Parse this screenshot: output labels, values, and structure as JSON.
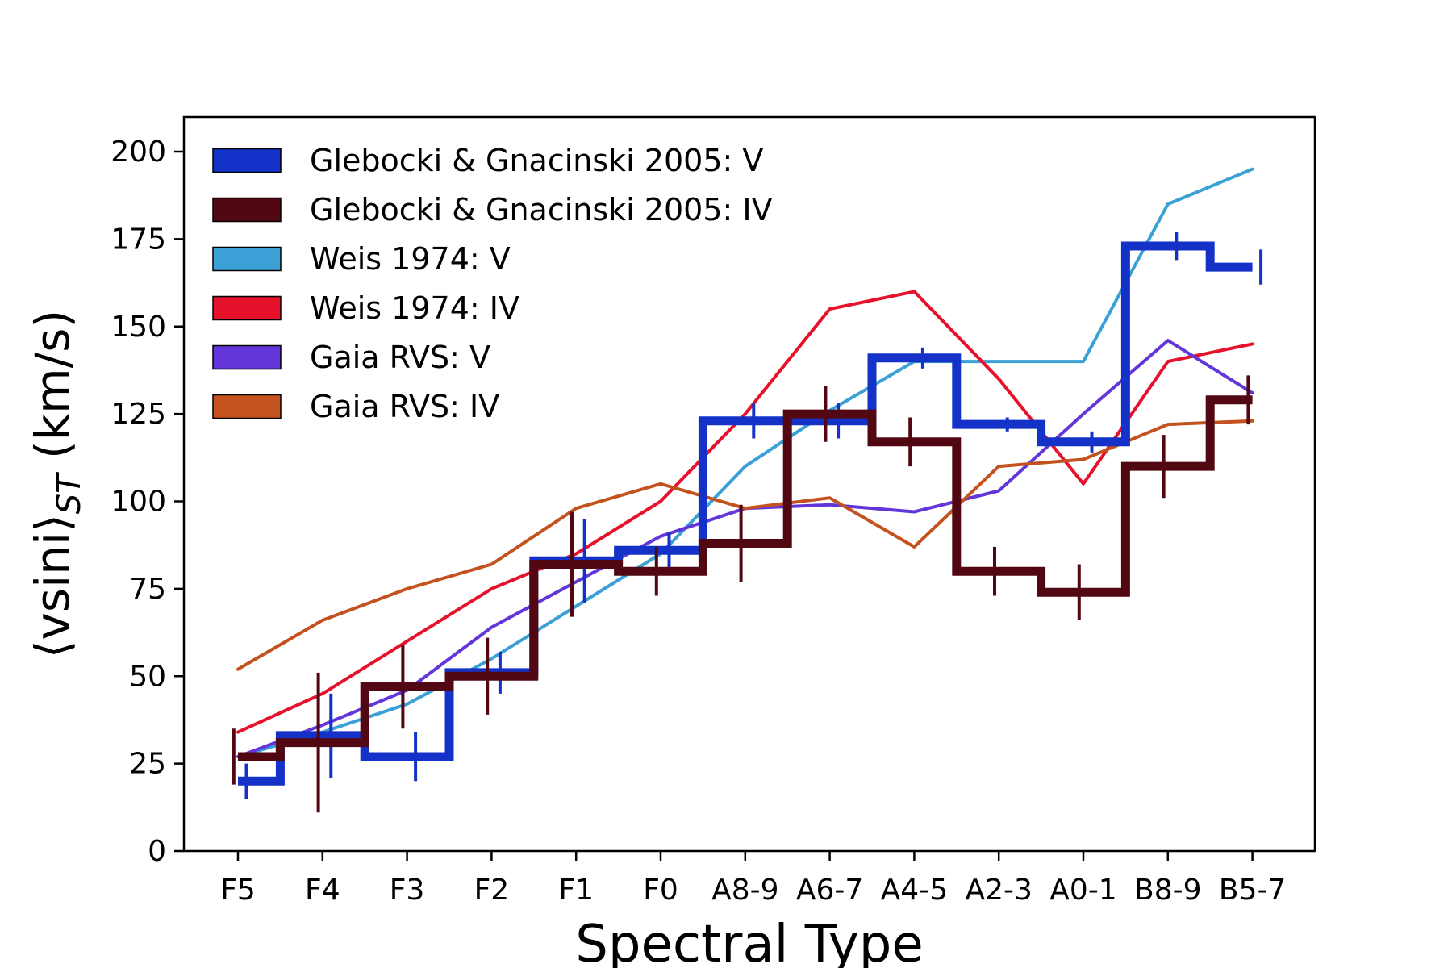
{
  "chart_data": {
    "type": "line",
    "title": "",
    "xlabel": "Spectral Type",
    "ylabel": {
      "main": "⟨vsini⟩",
      "subscript": "ST",
      "unit": " (km/s)"
    },
    "categories": [
      "F5",
      "F4",
      "F3",
      "F2",
      "F1",
      "F0",
      "A8-9",
      "A6-7",
      "A4-5",
      "A2-3",
      "A0-1",
      "B8-9",
      "B5-7"
    ],
    "yticks": [
      "0",
      "25",
      "50",
      "75",
      "100",
      "125",
      "150",
      "175",
      "200"
    ],
    "ylim": [
      0,
      200
    ],
    "grid": false,
    "legend_position": "top-left",
    "series": [
      {
        "name": "Glebocki & Gnacinski 2005: V",
        "style": "step",
        "color": "#1432c8",
        "values": [
          20,
          33,
          27,
          51,
          83,
          86,
          123,
          123,
          141,
          122,
          117,
          173,
          167
        ],
        "errors": [
          5,
          12,
          7,
          6,
          12,
          5,
          5,
          5,
          3,
          2,
          3,
          4,
          5
        ],
        "error_offset": 0.1
      },
      {
        "name": "Glebocki & Gnacinski 2005: IV",
        "style": "step",
        "color": "#520812",
        "values": [
          27,
          31,
          47,
          50,
          82,
          80,
          88,
          125,
          117,
          80,
          74,
          110,
          129
        ],
        "errors": [
          8,
          20,
          12,
          11,
          15,
          7,
          11,
          8,
          7,
          7,
          8,
          9,
          7
        ],
        "error_offset": -0.05
      },
      {
        "name": "Weis 1974: V",
        "style": "line",
        "color": "#3aa0d6",
        "values": [
          27,
          34,
          42,
          55,
          70,
          85,
          110,
          126,
          140,
          140,
          140,
          185,
          195
        ]
      },
      {
        "name": "Weis 1974: IV",
        "style": "line",
        "color": "#e6112b",
        "values": [
          34,
          45,
          60,
          75,
          85,
          100,
          125,
          155,
          160,
          135,
          105,
          140,
          145
        ]
      },
      {
        "name": "Gaia RVS: V",
        "style": "line",
        "color": "#6236d8",
        "values": [
          27,
          36,
          46,
          64,
          77,
          90,
          98,
          99,
          97,
          103,
          125,
          146,
          131
        ]
      },
      {
        "name": "Gaia RVS: IV",
        "style": "line",
        "color": "#c4521e",
        "values": [
          52,
          66,
          75,
          82,
          98,
          105,
          98,
          101,
          87,
          110,
          112,
          122,
          123
        ]
      }
    ]
  }
}
